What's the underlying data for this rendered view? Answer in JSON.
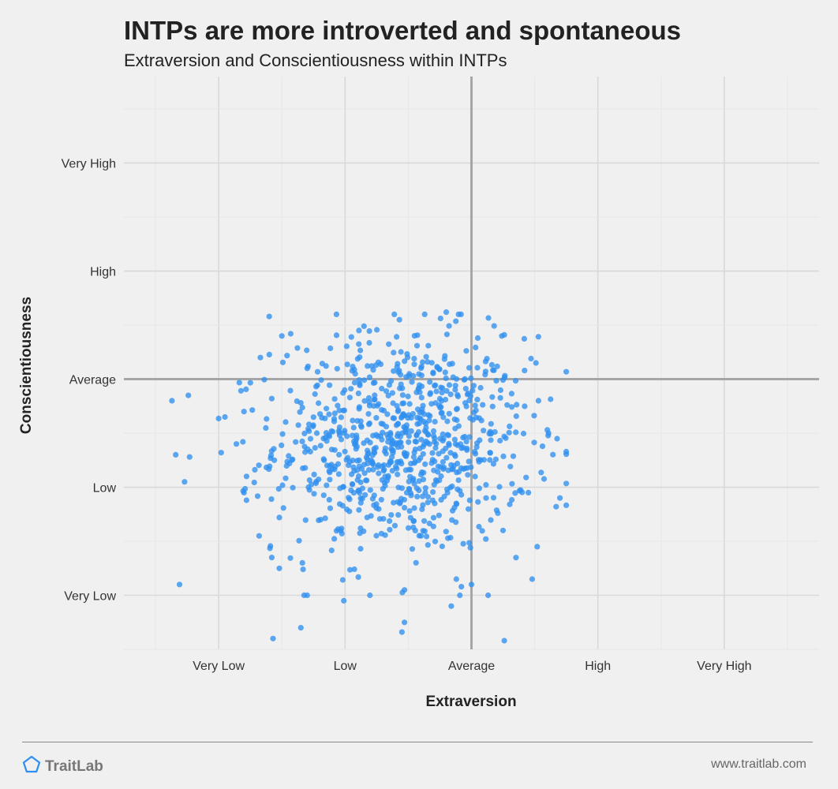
{
  "chart_data": {
    "type": "scatter",
    "title": "INTPs are more introverted and spontaneous",
    "subtitle": "Extraversion and Conscientiousness within INTPs",
    "xlabel": "Extraversion",
    "ylabel": "Conscientiousness",
    "x_ticks": [
      "Very Low",
      "Low",
      "Average",
      "High",
      "Very High"
    ],
    "y_ticks": [
      "Very High",
      "High",
      "Average",
      "Low",
      "Very Low"
    ],
    "x_tick_values": [
      -2,
      -1,
      0,
      1,
      2
    ],
    "y_tick_values": [
      2,
      1,
      0,
      -1,
      -2
    ],
    "xlim": [
      -2.75,
      2.75
    ],
    "ylim": [
      -2.5,
      2.8
    ],
    "grid": true,
    "reference_lines": {
      "x": 0,
      "y": 0
    },
    "marker_color": "#2f8ff0",
    "n_points": 900,
    "x_distribution": {
      "mean": -0.55,
      "sd": 0.5
    },
    "y_distribution": {
      "mean": -0.6,
      "sd": 0.5
    },
    "points": [
      [
        -2.37,
        -0.2
      ],
      [
        -2.34,
        -0.7
      ],
      [
        -2.31,
        -1.9
      ],
      [
        -2.27,
        -0.95
      ],
      [
        -2.23,
        -0.72
      ],
      [
        -2.24,
        -0.15
      ],
      [
        -1.98,
        -0.68
      ],
      [
        -1.8,
        -1.05
      ],
      [
        -1.86,
        -0.6
      ],
      [
        -1.78,
        -0.9
      ],
      [
        -1.95,
        -0.35
      ],
      [
        -1.8,
        -0.3
      ],
      [
        -1.78,
        -1.12
      ],
      [
        -1.67,
        0.2
      ],
      [
        -1.58,
        -0.18
      ],
      [
        -1.56,
        -0.75
      ],
      [
        -1.68,
        -1.45
      ],
      [
        -1.58,
        -1.65
      ],
      [
        -1.52,
        -1.75
      ],
      [
        -1.57,
        -2.4
      ],
      [
        -1.6,
        0.58
      ],
      [
        -1.5,
        0.4
      ],
      [
        -1.52,
        -1.28
      ],
      [
        -1.29,
        -1.0
      ],
      [
        -1.43,
        0.42
      ],
      [
        -1.35,
        -2.3
      ],
      [
        -1.3,
        -2.0
      ],
      [
        -0.37,
        0.6
      ],
      [
        -0.85,
        0.49
      ],
      [
        -1.3,
        0.1
      ],
      [
        -0.08,
        -1.07
      ],
      [
        0.25,
        -1.4
      ],
      [
        0.52,
        -1.55
      ],
      [
        0.45,
        -1.05
      ],
      [
        0.67,
        -1.18
      ],
      [
        0.7,
        -1.1
      ],
      [
        0.61,
        -0.5
      ],
      [
        0.53,
        -0.2
      ],
      [
        0.6,
        -0.47
      ],
      [
        0.48,
        -1.85
      ],
      [
        0.26,
        -2.42
      ],
      [
        0.0,
        -1.9
      ],
      [
        -0.19,
        -1.05
      ],
      [
        -1.01,
        -2.05
      ],
      [
        -0.53,
        -2.25
      ],
      [
        -0.55,
        -2.34
      ],
      [
        -0.16,
        -2.1
      ],
      [
        -0.53,
        -1.95
      ],
      [
        -0.2,
        0.62
      ],
      [
        -0.57,
        0.55
      ],
      [
        -0.89,
        0.45
      ],
      [
        -0.95,
        0.39
      ],
      [
        0.24,
        0.4
      ],
      [
        0.26,
        0.41
      ],
      [
        0.51,
        0.15
      ],
      [
        0.42,
        0.08
      ],
      [
        0.05,
        0.38
      ],
      [
        -0.08,
        -1.92
      ],
      [
        -0.12,
        -1.85
      ]
    ]
  },
  "footer": {
    "brand": "TraitLab",
    "url": "www.traitlab.com",
    "brand_color": "#2f8ff0"
  }
}
